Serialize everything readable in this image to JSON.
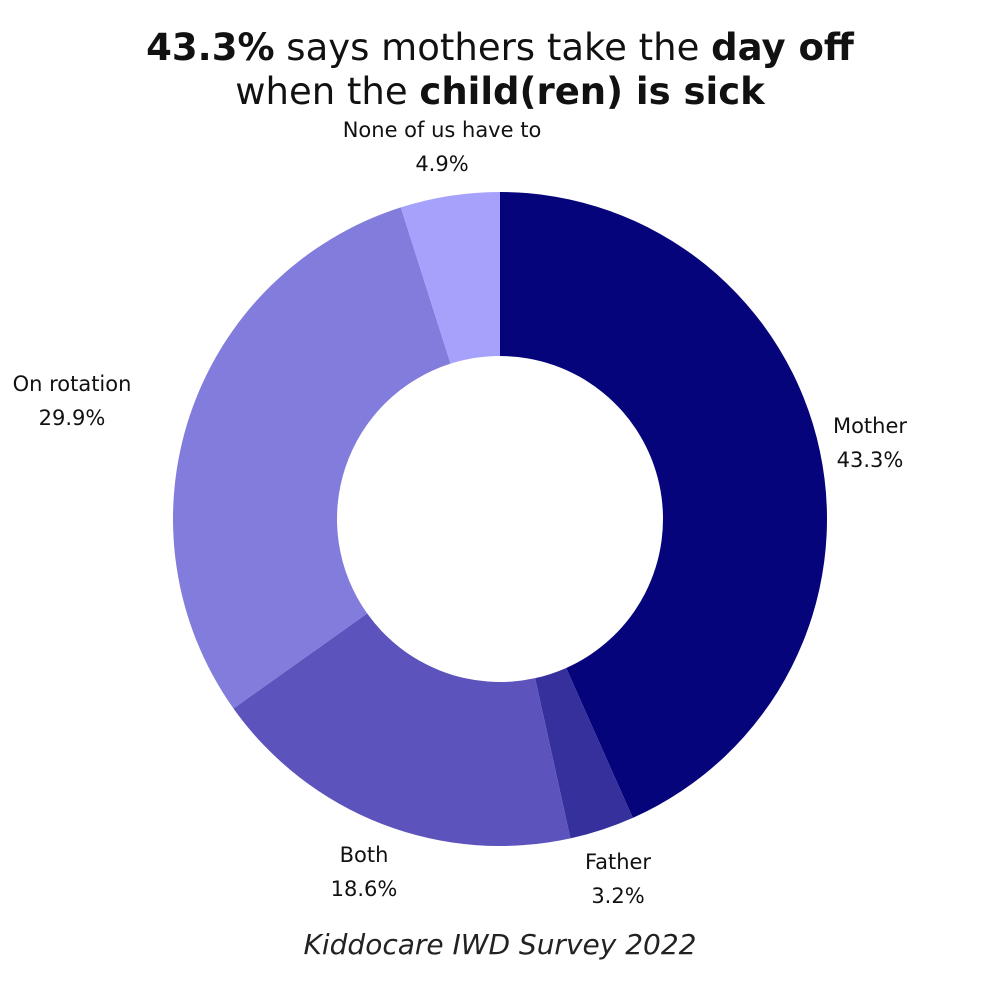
{
  "title": {
    "line1_bold": "43.3%",
    "line1_rest": " says mothers take the ",
    "line1_bold2": "day off",
    "line2_rest": "when the ",
    "line2_bold": "child(ren) is sick"
  },
  "source": "Kiddocare IWD Survey 2022",
  "chart_data": {
    "type": "pie",
    "donut": true,
    "title": "43.3% says mothers take the day off when the child(ren) is sick",
    "slices": [
      {
        "label": "Mother",
        "value": 43.3,
        "value_label": "43.3%",
        "color": "#06047a"
      },
      {
        "label": "Father",
        "value": 3.2,
        "value_label": "3.2%",
        "color": "#35309c"
      },
      {
        "label": "Both",
        "value": 18.6,
        "value_label": "18.6%",
        "color": "#5c54bc"
      },
      {
        "label": "On rotation",
        "value": 29.9,
        "value_label": "29.9%",
        "color": "#827cdc"
      },
      {
        "label": "None of us have to",
        "value": 4.9,
        "value_label": "4.9%",
        "color": "#a6a2fc"
      }
    ]
  }
}
